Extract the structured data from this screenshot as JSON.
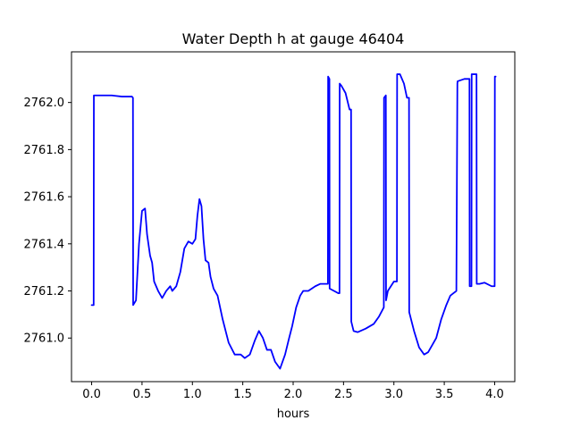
{
  "chart_data": {
    "type": "line",
    "title": "Water Depth h at gauge 46404",
    "xlabel": "hours",
    "ylabel": "",
    "xlim": [
      -0.2,
      4.2
    ],
    "ylim": [
      2760.815,
      2762.215
    ],
    "xticks": [
      0.0,
      0.5,
      1.0,
      1.5,
      2.0,
      2.5,
      3.0,
      3.5,
      4.0
    ],
    "xtick_labels": [
      "0.0",
      "0.5",
      "1.0",
      "1.5",
      "2.0",
      "2.5",
      "3.0",
      "3.5",
      "4.0"
    ],
    "yticks": [
      2761.0,
      2761.2,
      2761.4,
      2761.6,
      2761.8,
      2762.0
    ],
    "ytick_labels": [
      "2761.0",
      "2761.2",
      "2761.4",
      "2761.6",
      "2761.8",
      "2762.0"
    ],
    "grid": false,
    "series": [
      {
        "color": "#0000ff",
        "x": [
          0.0,
          0.02,
          0.022,
          0.2,
          0.3,
          0.4,
          0.41,
          0.412,
          0.44,
          0.47,
          0.5,
          0.53,
          0.55,
          0.58,
          0.6,
          0.62,
          0.66,
          0.7,
          0.74,
          0.78,
          0.8,
          0.84,
          0.88,
          0.92,
          0.96,
          1.0,
          1.03,
          1.05,
          1.07,
          1.09,
          1.11,
          1.13,
          1.16,
          1.18,
          1.21,
          1.25,
          1.3,
          1.36,
          1.42,
          1.48,
          1.52,
          1.57,
          1.62,
          1.66,
          1.7,
          1.74,
          1.78,
          1.82,
          1.87,
          1.92,
          1.96,
          1.99,
          2.03,
          2.07,
          2.1,
          2.15,
          2.22,
          2.27,
          2.33,
          2.345,
          2.347,
          2.36,
          2.362,
          2.45,
          2.46,
          2.462,
          2.48,
          2.52,
          2.56,
          2.575,
          2.577,
          2.6,
          2.64,
          2.72,
          2.8,
          2.85,
          2.9,
          2.902,
          2.92,
          2.922,
          2.94,
          2.97,
          3.0,
          3.03,
          3.032,
          3.06,
          3.1,
          3.13,
          3.15,
          3.152,
          3.2,
          3.25,
          3.3,
          3.34,
          3.38,
          3.42,
          3.47,
          3.52,
          3.56,
          3.62,
          3.63,
          3.632,
          3.7,
          3.75,
          3.752,
          3.77,
          3.772,
          3.8,
          3.82,
          3.822,
          3.85,
          3.9,
          3.97,
          4.0,
          4.002,
          4.01
        ],
        "y": [
          2761.14,
          2761.14,
          2762.03,
          2762.03,
          2762.025,
          2762.025,
          2762.02,
          2761.14,
          2761.16,
          2761.4,
          2761.54,
          2761.55,
          2761.44,
          2761.35,
          2761.32,
          2761.24,
          2761.2,
          2761.17,
          2761.2,
          2761.22,
          2761.2,
          2761.22,
          2761.28,
          2761.38,
          2761.41,
          2761.4,
          2761.42,
          2761.52,
          2761.59,
          2761.56,
          2761.42,
          2761.33,
          2761.32,
          2761.26,
          2761.21,
          2761.18,
          2761.08,
          2760.98,
          2760.93,
          2760.93,
          2760.915,
          2760.93,
          2760.99,
          2761.03,
          2761.0,
          2760.95,
          2760.95,
          2760.9,
          2760.87,
          2760.93,
          2761.0,
          2761.05,
          2761.13,
          2761.18,
          2761.2,
          2761.2,
          2761.22,
          2761.23,
          2761.23,
          2761.23,
          2762.11,
          2762.1,
          2761.21,
          2761.19,
          2761.19,
          2762.08,
          2762.07,
          2762.04,
          2761.97,
          2761.97,
          2761.07,
          2761.03,
          2761.025,
          2761.04,
          2761.06,
          2761.09,
          2761.13,
          2762.02,
          2762.03,
          2761.16,
          2761.2,
          2761.22,
          2761.24,
          2761.24,
          2762.12,
          2762.12,
          2762.08,
          2762.02,
          2762.02,
          2761.11,
          2761.03,
          2760.96,
          2760.93,
          2760.94,
          2760.97,
          2761.0,
          2761.08,
          2761.14,
          2761.18,
          2761.2,
          2762.08,
          2762.09,
          2762.1,
          2762.1,
          2761.22,
          2761.22,
          2762.12,
          2762.12,
          2762.12,
          2761.23,
          2761.23,
          2761.235,
          2761.22,
          2761.22,
          2762.11,
          2762.11
        ]
      }
    ]
  }
}
